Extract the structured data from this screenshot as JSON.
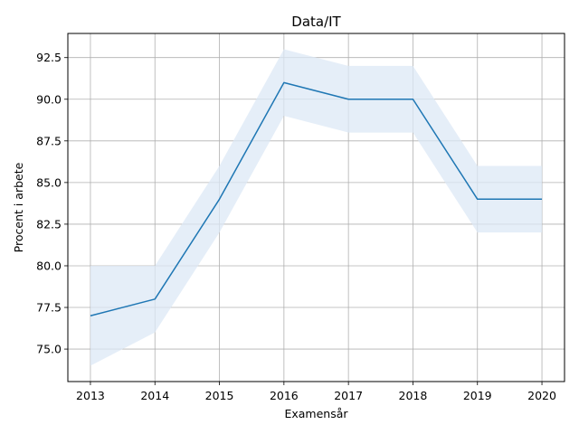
{
  "chart_data": {
    "type": "line",
    "title": "Data/IT",
    "xlabel": "Examensår",
    "ylabel": "Procent i arbete",
    "x": [
      2013,
      2014,
      2015,
      2016,
      2017,
      2018,
      2019,
      2020
    ],
    "x_tick_labels": [
      "2013",
      "2014",
      "2015",
      "2016",
      "2017",
      "2018",
      "2019",
      "2020"
    ],
    "series": [
      {
        "values": [
          77.0,
          78.0,
          84.0,
          91.0,
          90.0,
          90.0,
          84.0,
          84.0
        ],
        "band_lower": [
          74.0,
          76.0,
          82.0,
          89.0,
          88.0,
          88.0,
          82.0,
          82.0
        ],
        "band_upper": [
          80.0,
          80.0,
          86.0,
          93.0,
          92.0,
          92.0,
          86.0,
          86.0
        ],
        "color": "#1f77b4",
        "band_color": "#dce8f5"
      }
    ],
    "y_ticks": [
      75.0,
      77.5,
      80.0,
      82.5,
      85.0,
      87.5,
      90.0,
      92.5
    ],
    "y_tick_labels": [
      "75.0",
      "77.5",
      "80.0",
      "82.5",
      "85.0",
      "87.5",
      "90.0",
      "92.5"
    ],
    "xlim": [
      2012.65,
      2020.35
    ],
    "ylim": [
      73.05,
      93.95
    ],
    "grid": true
  }
}
